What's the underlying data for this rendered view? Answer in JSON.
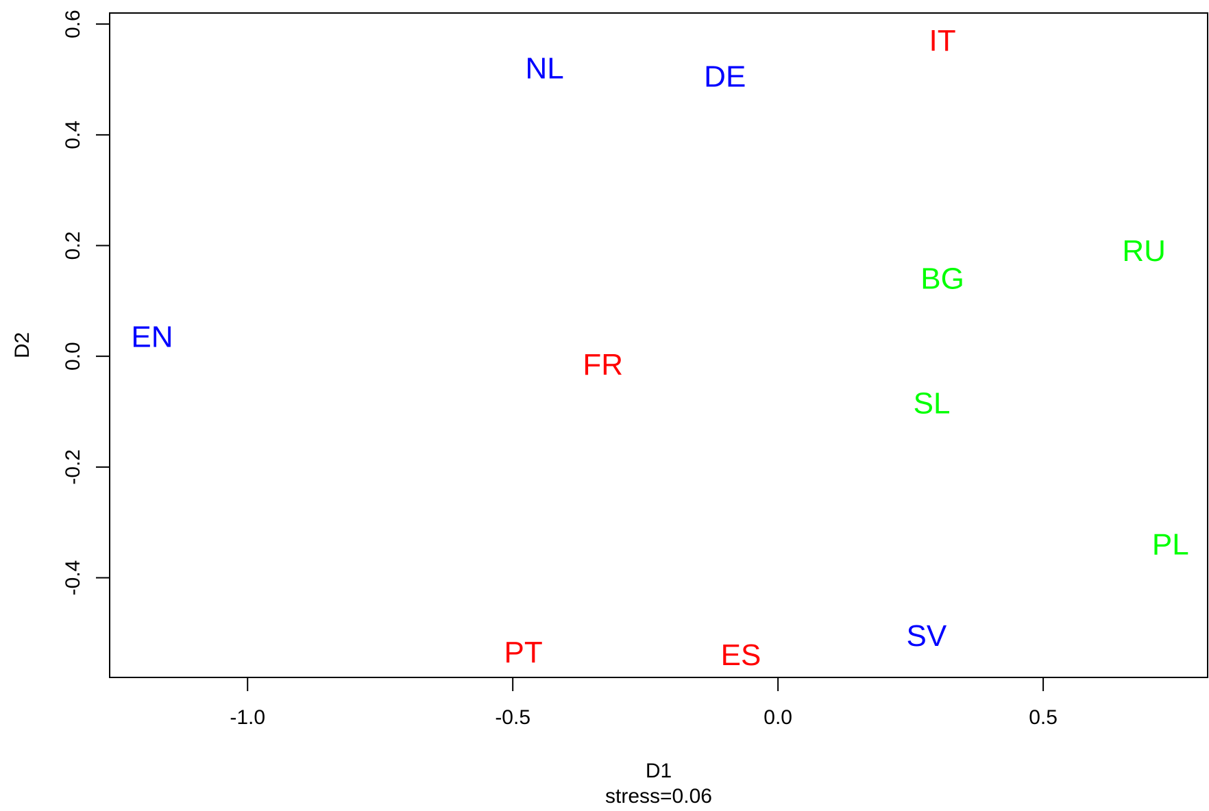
{
  "chart_data": {
    "type": "scatter",
    "xlabel": "D1",
    "ylabel": "D2",
    "subtitle": "stress=0.06",
    "xlim": [
      -1.26,
      0.81
    ],
    "ylim": [
      -0.58,
      0.62
    ],
    "xticks": [
      "-1.0",
      "-0.5",
      "0.0",
      "0.5"
    ],
    "xtick_values": [
      -1.0,
      -0.5,
      0.0,
      0.5
    ],
    "yticks": [
      "-0.4",
      "-0.2",
      "0.0",
      "0.2",
      "0.4",
      "0.6"
    ],
    "ytick_values": [
      -0.4,
      -0.2,
      0.0,
      0.2,
      0.4,
      0.6
    ],
    "grid": false,
    "colors": {
      "blue": "#0000ff",
      "red": "#ff0000",
      "green": "#00ff00"
    },
    "points": [
      {
        "label": "NL",
        "x": -0.44,
        "y": 0.52,
        "color": "#0000ff"
      },
      {
        "label": "DE",
        "x": -0.1,
        "y": 0.505,
        "color": "#0000ff"
      },
      {
        "label": "IT",
        "x": 0.31,
        "y": 0.57,
        "color": "#ff0000"
      },
      {
        "label": "RU",
        "x": 0.69,
        "y": 0.19,
        "color": "#00ff00"
      },
      {
        "label": "BG",
        "x": 0.31,
        "y": 0.14,
        "color": "#00ff00"
      },
      {
        "label": "EN",
        "x": -1.18,
        "y": 0.035,
        "color": "#0000ff"
      },
      {
        "label": "FR",
        "x": -0.33,
        "y": -0.015,
        "color": "#ff0000"
      },
      {
        "label": "SL",
        "x": 0.29,
        "y": -0.085,
        "color": "#00ff00"
      },
      {
        "label": "PL",
        "x": 0.74,
        "y": -0.34,
        "color": "#00ff00"
      },
      {
        "label": "SV",
        "x": 0.28,
        "y": -0.505,
        "color": "#0000ff"
      },
      {
        "label": "PT",
        "x": -0.48,
        "y": -0.535,
        "color": "#ff0000"
      },
      {
        "label": "ES",
        "x": -0.07,
        "y": -0.54,
        "color": "#ff0000"
      }
    ]
  }
}
